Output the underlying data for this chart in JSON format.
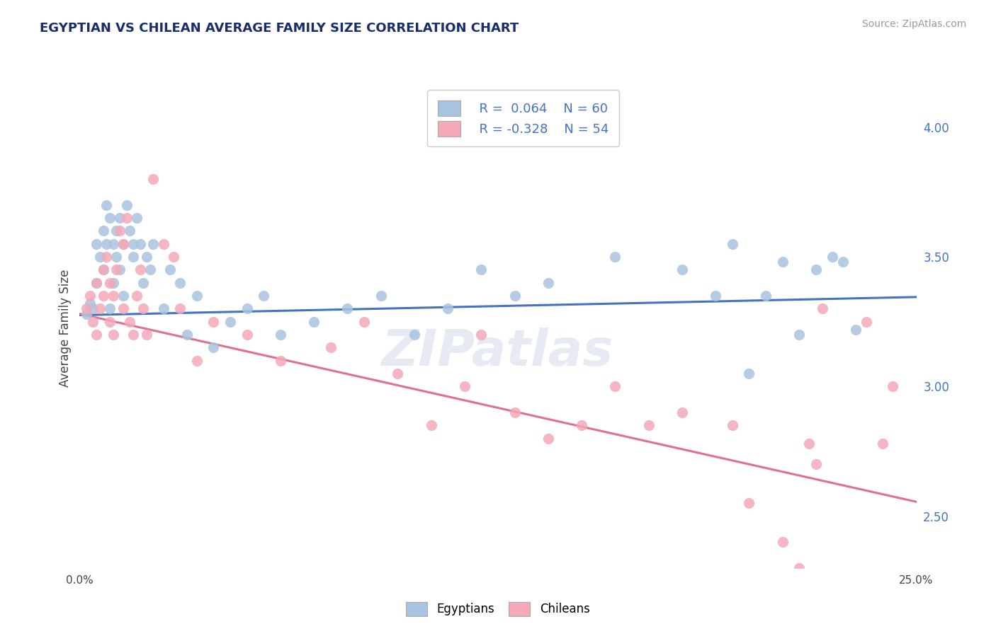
{
  "title": "EGYPTIAN VS CHILEAN AVERAGE FAMILY SIZE CORRELATION CHART",
  "source": "Source: ZipAtlas.com",
  "ylabel": "Average Family Size",
  "xlim": [
    0.0,
    0.25
  ],
  "ylim": [
    2.3,
    4.15
  ],
  "yticks_right": [
    2.5,
    3.0,
    3.5,
    4.0
  ],
  "xticks": [
    0.0,
    0.05,
    0.1,
    0.15,
    0.2,
    0.25
  ],
  "xticklabels": [
    "0.0%",
    "",
    "",
    "",
    "",
    "25.0%"
  ],
  "bg_color": "#ffffff",
  "grid_color": "#cccccc",
  "egyptian_color": "#a8c4e0",
  "chilean_color": "#f4a8b8",
  "egyptian_line_color": "#4472c4",
  "chilean_line_color": "#e07090",
  "R_egyptian": 0.064,
  "N_egyptian": 60,
  "R_chilean": -0.328,
  "N_chilean": 54,
  "egyptian_line_x0": 0.0,
  "egyptian_line_y0": 3.275,
  "egyptian_line_x1": 0.25,
  "egyptian_line_y1": 3.345,
  "chilean_line_x0": 0.0,
  "chilean_line_y0": 3.28,
  "chilean_line_x1": 0.25,
  "chilean_line_y1": 2.555,
  "egyptian_x": [
    0.002,
    0.003,
    0.004,
    0.005,
    0.005,
    0.006,
    0.007,
    0.007,
    0.008,
    0.008,
    0.009,
    0.009,
    0.01,
    0.01,
    0.011,
    0.011,
    0.012,
    0.012,
    0.013,
    0.013,
    0.014,
    0.015,
    0.016,
    0.016,
    0.017,
    0.018,
    0.019,
    0.02,
    0.021,
    0.022,
    0.025,
    0.027,
    0.03,
    0.032,
    0.035,
    0.04,
    0.045,
    0.05,
    0.055,
    0.06,
    0.07,
    0.08,
    0.09,
    0.1,
    0.11,
    0.12,
    0.13,
    0.14,
    0.16,
    0.18,
    0.19,
    0.195,
    0.2,
    0.205,
    0.21,
    0.215,
    0.22,
    0.225,
    0.228,
    0.232
  ],
  "egyptian_y": [
    3.28,
    3.32,
    3.3,
    3.55,
    3.4,
    3.5,
    3.6,
    3.45,
    3.7,
    3.55,
    3.65,
    3.3,
    3.55,
    3.4,
    3.6,
    3.5,
    3.65,
    3.45,
    3.55,
    3.35,
    3.7,
    3.6,
    3.55,
    3.5,
    3.65,
    3.55,
    3.4,
    3.5,
    3.45,
    3.55,
    3.3,
    3.45,
    3.4,
    3.2,
    3.35,
    3.15,
    3.25,
    3.3,
    3.35,
    3.2,
    3.25,
    3.3,
    3.35,
    3.2,
    3.3,
    3.45,
    3.35,
    3.4,
    3.5,
    3.45,
    3.35,
    3.55,
    3.05,
    3.35,
    3.48,
    3.2,
    3.45,
    3.5,
    3.48,
    3.22
  ],
  "chilean_x": [
    0.002,
    0.003,
    0.004,
    0.005,
    0.005,
    0.006,
    0.007,
    0.007,
    0.008,
    0.009,
    0.009,
    0.01,
    0.01,
    0.011,
    0.012,
    0.013,
    0.013,
    0.014,
    0.015,
    0.016,
    0.017,
    0.018,
    0.019,
    0.02,
    0.022,
    0.025,
    0.028,
    0.03,
    0.035,
    0.04,
    0.05,
    0.06,
    0.075,
    0.085,
    0.095,
    0.105,
    0.115,
    0.12,
    0.13,
    0.14,
    0.15,
    0.16,
    0.17,
    0.18,
    0.195,
    0.2,
    0.21,
    0.215,
    0.218,
    0.22,
    0.222,
    0.235,
    0.24,
    0.243
  ],
  "chilean_y": [
    3.3,
    3.35,
    3.25,
    3.4,
    3.2,
    3.3,
    3.45,
    3.35,
    3.5,
    3.25,
    3.4,
    3.35,
    3.2,
    3.45,
    3.6,
    3.55,
    3.3,
    3.65,
    3.25,
    3.2,
    3.35,
    3.45,
    3.3,
    3.2,
    3.8,
    3.55,
    3.5,
    3.3,
    3.1,
    3.25,
    3.2,
    3.1,
    3.15,
    3.25,
    3.05,
    2.85,
    3.0,
    3.2,
    2.9,
    2.8,
    2.85,
    3.0,
    2.85,
    2.9,
    2.85,
    2.55,
    2.4,
    2.3,
    2.78,
    2.7,
    3.3,
    3.25,
    2.78,
    3.0
  ]
}
